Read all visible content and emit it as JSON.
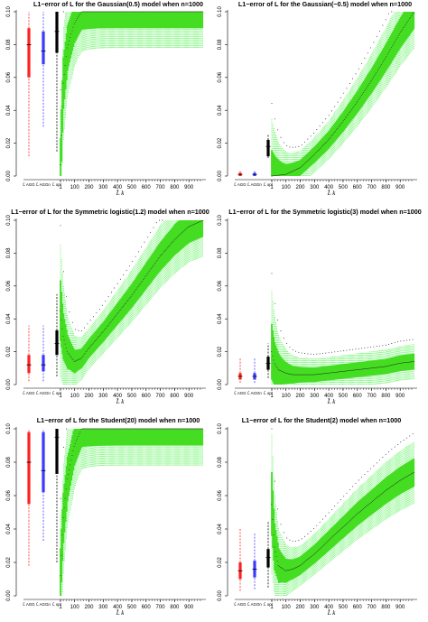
{
  "figure": {
    "x_axis_label": "L̂ k",
    "estimator_labels": [
      "L̂ AGG",
      "L̂ AGGn",
      "L̂ opt"
    ],
    "x_tick_labels": [
      "1",
      "100",
      "200",
      "300",
      "400",
      "500",
      "600",
      "700",
      "800",
      "900"
    ],
    "colors": {
      "estimator_1": "#ff2020",
      "estimator_2": "#3a3aff",
      "estimator_3": "#000000",
      "box_fill": "#44dd22",
      "whisker": "#33ee33",
      "outlier": "#000000"
    }
  },
  "chart_data": [
    {
      "type": "boxplot",
      "title": "L1−error of L for the Gaussian(0.5) model when n=1000",
      "xlabel": "L̂ k",
      "ylabel": "",
      "ylim": [
        0,
        0.1
      ],
      "yticks": [
        "0.00",
        "0.02",
        "0.04",
        "0.06",
        "0.08",
        "0.10"
      ],
      "xticks": [
        "1",
        "100",
        "200",
        "300",
        "400",
        "500",
        "600",
        "700",
        "800",
        "900"
      ],
      "estimators": [
        {
          "name": "L̂ AGG",
          "median": 0.08,
          "q1": 0.06,
          "q3": 0.09,
          "low": 0.012,
          "high": 0.1
        },
        {
          "name": "L̂ AGGn",
          "median": 0.076,
          "q1": 0.068,
          "q3": 0.088,
          "low": 0.03,
          "high": 0.1
        },
        {
          "name": "L̂ opt",
          "median": 0.088,
          "q1": 0.075,
          "q3": 0.1,
          "low": 0.015,
          "high": 0.1
        }
      ],
      "k_curve": {
        "k": [
          1,
          20,
          50,
          100,
          150,
          200,
          300,
          400,
          500,
          600,
          700,
          800,
          900,
          1000
        ],
        "median": [
          0.007,
          0.055,
          0.078,
          0.093,
          0.1,
          0.1,
          0.1,
          0.1,
          0.1,
          0.1,
          0.1,
          0.1,
          0.1,
          0.1
        ]
      }
    },
    {
      "type": "boxplot",
      "title": "L1−error of L for the Gaussian(−0.5) model when n=1000",
      "xlabel": "L̂ k",
      "ylabel": "",
      "ylim": [
        0,
        0.1
      ],
      "yticks": [
        "0.00",
        "0.02",
        "0.04",
        "0.06",
        "0.08",
        "0.10"
      ],
      "xticks": [
        "1",
        "100",
        "200",
        "300",
        "400",
        "500",
        "600",
        "700",
        "800",
        "900"
      ],
      "estimators": [
        {
          "name": "L̂ AGG",
          "median": 0.001,
          "q1": 0.0,
          "q3": 0.002,
          "low": 0.0,
          "high": 0.003
        },
        {
          "name": "L̂ AGGn",
          "median": 0.001,
          "q1": 0.0,
          "q3": 0.002,
          "low": 0.0,
          "high": 0.003
        },
        {
          "name": "L̂ opt",
          "median": 0.018,
          "q1": 0.012,
          "q3": 0.022,
          "low": 0.011,
          "high": 0.025
        }
      ],
      "k_curve": {
        "k": [
          1,
          100,
          200,
          300,
          400,
          500,
          600,
          700,
          800,
          900,
          1000
        ],
        "median": [
          0.0,
          0.001,
          0.005,
          0.013,
          0.022,
          0.033,
          0.045,
          0.058,
          0.072,
          0.087,
          0.1
        ]
      }
    },
    {
      "type": "boxplot",
      "title": "L1−error of L for the Symmetric logistic(1.2) model when n=1000",
      "xlabel": "L̂ k",
      "ylabel": "",
      "ylim": [
        0,
        0.1
      ],
      "yticks": [
        "0.00",
        "0.02",
        "0.04",
        "0.06",
        "0.08",
        "0.10"
      ],
      "xticks": [
        "1",
        "100",
        "200",
        "300",
        "400",
        "500",
        "600",
        "700",
        "800",
        "900"
      ],
      "estimators": [
        {
          "name": "L̂ AGG",
          "median": 0.012,
          "q1": 0.007,
          "q3": 0.018,
          "low": 0.002,
          "high": 0.036
        },
        {
          "name": "L̂ AGGn",
          "median": 0.012,
          "q1": 0.008,
          "q3": 0.018,
          "low": 0.002,
          "high": 0.036
        },
        {
          "name": "L̂ opt",
          "median": 0.025,
          "q1": 0.018,
          "q3": 0.033,
          "low": 0.005,
          "high": 0.055
        }
      ],
      "k_curve": {
        "k": [
          1,
          20,
          50,
          100,
          150,
          200,
          300,
          400,
          500,
          600,
          700,
          800,
          900,
          1000
        ],
        "median": [
          0.045,
          0.03,
          0.02,
          0.014,
          0.016,
          0.022,
          0.032,
          0.043,
          0.054,
          0.066,
          0.078,
          0.088,
          0.096,
          0.1
        ]
      }
    },
    {
      "type": "boxplot",
      "title": "L1−error of L for the Symmetric logistic(3) model when n=1000",
      "xlabel": "L̂ k",
      "ylabel": "",
      "ylim": [
        0,
        0.1
      ],
      "yticks": [
        "0.00",
        "0.02",
        "0.04",
        "0.06",
        "0.08",
        "0.10"
      ],
      "xticks": [
        "1",
        "100",
        "200",
        "300",
        "400",
        "500",
        "600",
        "700",
        "800",
        "900"
      ],
      "estimators": [
        {
          "name": "L̂ AGG",
          "median": 0.005,
          "q1": 0.003,
          "q3": 0.007,
          "low": 0.001,
          "high": 0.016
        },
        {
          "name": "L̂ AGGn",
          "median": 0.005,
          "q1": 0.003,
          "q3": 0.007,
          "low": 0.001,
          "high": 0.016
        },
        {
          "name": "L̂ opt",
          "median": 0.013,
          "q1": 0.009,
          "q3": 0.017,
          "low": 0.004,
          "high": 0.025
        }
      ],
      "k_curve": {
        "k": [
          1,
          20,
          50,
          100,
          150,
          200,
          300,
          400,
          500,
          600,
          700,
          800,
          900,
          1000
        ],
        "median": [
          0.02,
          0.013,
          0.009,
          0.007,
          0.006,
          0.006,
          0.006,
          0.007,
          0.008,
          0.009,
          0.01,
          0.011,
          0.013,
          0.014
        ]
      }
    },
    {
      "type": "boxplot",
      "title": "L1−error of L for the Student(20) model when n=1000",
      "xlabel": "L̂ k",
      "ylabel": "",
      "ylim": [
        0,
        0.1
      ],
      "yticks": [
        "0.00",
        "0.02",
        "0.04",
        "0.06",
        "0.08",
        "0.10"
      ],
      "xticks": [
        "1",
        "100",
        "200",
        "300",
        "400",
        "500",
        "600",
        "700",
        "800",
        "900"
      ],
      "estimators": [
        {
          "name": "L̂ AGG",
          "median": 0.08,
          "q1": 0.055,
          "q3": 0.098,
          "low": 0.018,
          "high": 0.1
        },
        {
          "name": "L̂ AGGn",
          "median": 0.075,
          "q1": 0.062,
          "q3": 0.098,
          "low": 0.033,
          "high": 0.1
        },
        {
          "name": "L̂ opt",
          "median": 0.095,
          "q1": 0.073,
          "q3": 0.1,
          "low": 0.02,
          "high": 0.1
        }
      ],
      "k_curve": {
        "k": [
          1,
          20,
          50,
          100,
          150,
          200,
          300,
          400,
          500,
          600,
          700,
          800,
          900,
          1000
        ],
        "median": [
          0.012,
          0.045,
          0.07,
          0.09,
          0.1,
          0.1,
          0.1,
          0.1,
          0.1,
          0.1,
          0.1,
          0.1,
          0.1,
          0.1
        ]
      }
    },
    {
      "type": "boxplot",
      "title": "L1−error of L for the Student(2) model when n=1000",
      "xlabel": "L̂ k",
      "ylabel": "",
      "ylim": [
        0,
        0.1
      ],
      "yticks": [
        "0.00",
        "0.02",
        "0.04",
        "0.06",
        "0.08",
        "0.10"
      ],
      "xticks": [
        "1",
        "100",
        "200",
        "300",
        "400",
        "500",
        "600",
        "700",
        "800",
        "900"
      ],
      "estimators": [
        {
          "name": "L̂ AGG",
          "median": 0.015,
          "q1": 0.01,
          "q3": 0.02,
          "low": 0.003,
          "high": 0.04
        },
        {
          "name": "L̂ AGGn",
          "median": 0.016,
          "q1": 0.011,
          "q3": 0.021,
          "low": 0.004,
          "high": 0.038
        },
        {
          "name": "L̂ opt",
          "median": 0.023,
          "q1": 0.017,
          "q3": 0.028,
          "low": 0.005,
          "high": 0.045
        }
      ],
      "k_curve": {
        "k": [
          1,
          20,
          50,
          100,
          150,
          200,
          300,
          400,
          500,
          600,
          700,
          800,
          900,
          1000
        ],
        "median": [
          0.055,
          0.03,
          0.018,
          0.015,
          0.016,
          0.018,
          0.025,
          0.033,
          0.041,
          0.049,
          0.056,
          0.063,
          0.069,
          0.074
        ]
      }
    }
  ]
}
